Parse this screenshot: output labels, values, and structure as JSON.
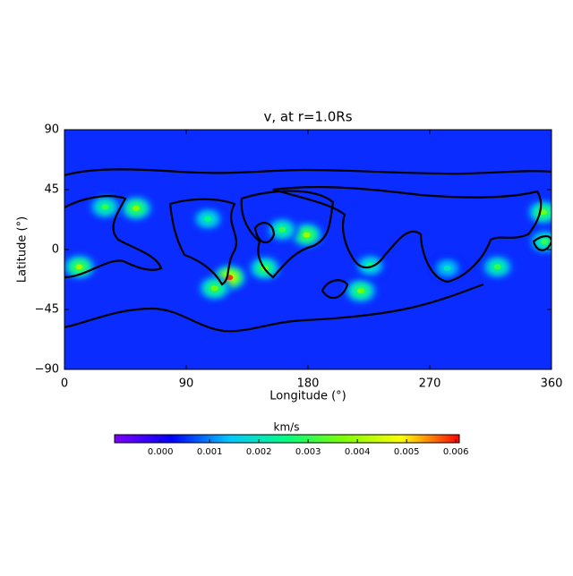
{
  "chart_data": {
    "type": "heatmap",
    "title": "v, at r=1.0Rs",
    "x_label": "Longitude (°)",
    "y_label": "Latitude (°)",
    "xlim": [
      0,
      360
    ],
    "ylim": [
      -90,
      90
    ],
    "xticks": [
      0,
      90,
      180,
      270,
      360
    ],
    "yticks": [
      {
        "value": -90,
        "label": "−90"
      },
      {
        "value": -45,
        "label": "−45"
      },
      0,
      45,
      90
    ],
    "background_color": "#0a2cff",
    "colormap": [
      "#8000ff",
      "#0000ff",
      "#00c8ff",
      "#00ff80",
      "#80ff00",
      "#ffff00",
      "#ff0000"
    ],
    "colorbar_label": "km/s",
    "clim": [
      -0.00093,
      0.00607
    ],
    "colorbar_ticks": [
      {
        "value": 0,
        "label": "0.000"
      },
      {
        "value": 0.001,
        "label": "0.001"
      },
      {
        "value": 0.002,
        "label": "0.002"
      },
      {
        "value": 0.003,
        "label": "0.003"
      },
      {
        "value": 0.004,
        "label": "0.004"
      },
      {
        "value": 0.005,
        "label": "0.005"
      },
      {
        "value": 0.006,
        "label": "0.006"
      }
    ],
    "hotspots": {
      "lon": [
        122,
        53,
        11,
        111,
        148,
        179,
        219,
        354,
        320,
        161,
        30,
        106,
        355,
        226,
        283
      ],
      "lat": [
        -21,
        31,
        -13,
        -29,
        -14,
        11,
        -31,
        28,
        -13,
        15,
        32,
        23,
        6,
        -12,
        -14
      ],
      "values": [
        0.0058,
        0.0038,
        0.004,
        0.0036,
        0.0035,
        0.004,
        0.0036,
        0.0036,
        0.003,
        0.003,
        0.003,
        0.0025,
        0.003,
        0.0025,
        0.002
      ]
    }
  }
}
